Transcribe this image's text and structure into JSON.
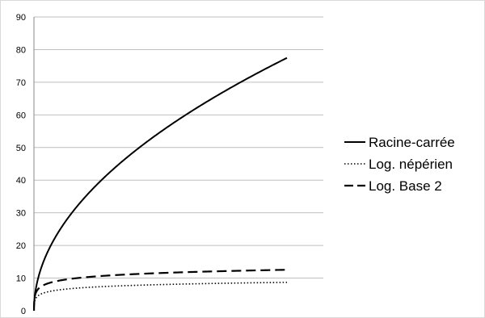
{
  "chart_data": {
    "type": "line",
    "title": "",
    "xlabel": "",
    "ylabel": "",
    "ylim": [
      0,
      90
    ],
    "yticks": [
      0,
      10,
      20,
      30,
      40,
      50,
      60,
      70,
      80,
      90
    ],
    "grid": "horizontal",
    "legend_position": "right",
    "x_domain": [
      0,
      6000
    ],
    "series": [
      {
        "name": "Racine-carrée",
        "style": "solid",
        "color": "#000000",
        "function": "sqrt"
      },
      {
        "name": "Log. népérien",
        "style": "dotted",
        "color": "#000000",
        "function": "ln"
      },
      {
        "name": "Log. Base 2",
        "style": "dashed",
        "color": "#000000",
        "function": "log2"
      }
    ]
  }
}
